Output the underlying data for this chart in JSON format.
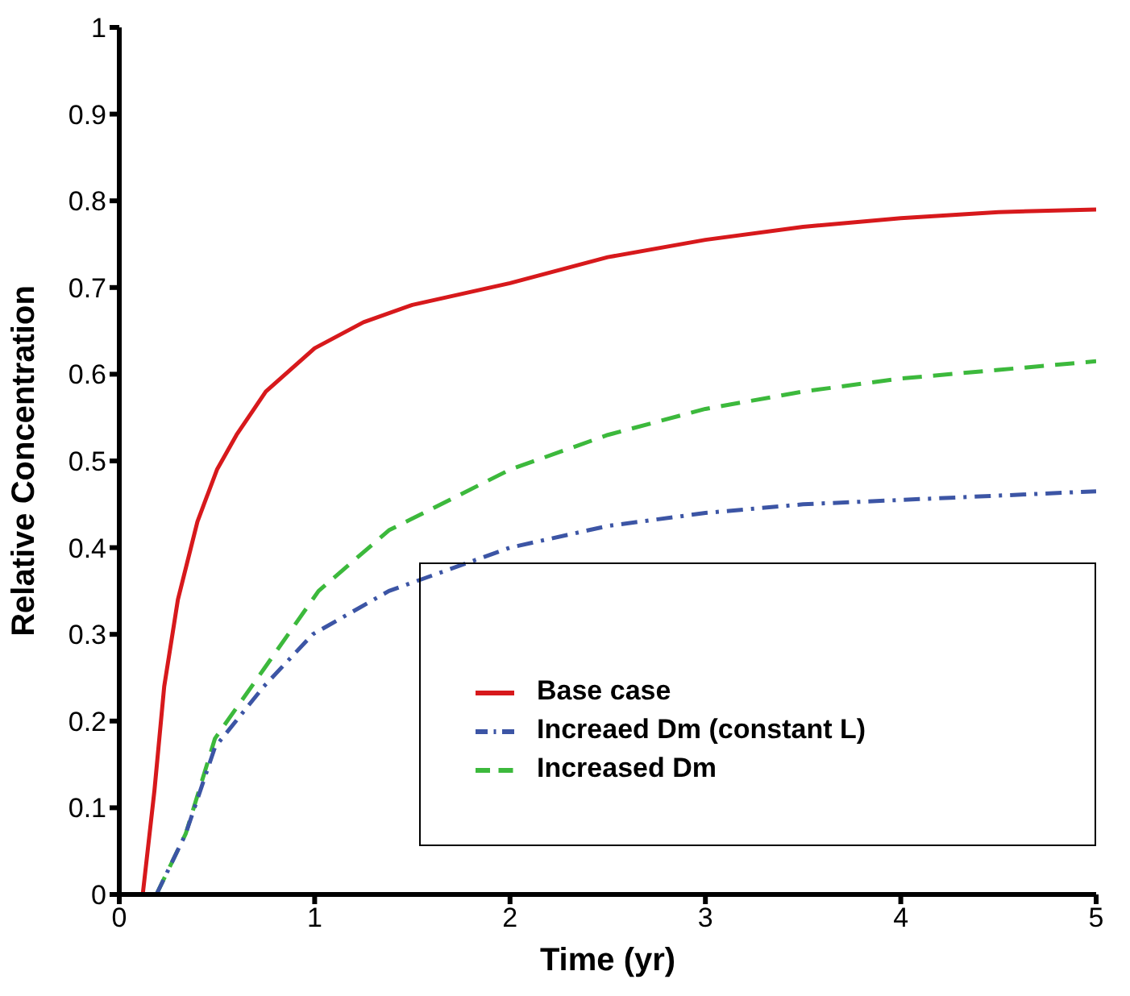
{
  "chart_data": {
    "type": "line",
    "xlabel": "Time (yr)",
    "ylabel": "Relative Concentration",
    "xlim": [
      0,
      5
    ],
    "ylim": [
      0,
      1
    ],
    "xticks": [
      0,
      1,
      2,
      3,
      4,
      5
    ],
    "yticks": [
      0,
      0.1,
      0.2,
      0.3,
      0.4,
      0.5,
      0.6,
      0.7,
      0.8,
      0.9,
      1
    ],
    "grid": false,
    "legend": "bottom right",
    "series": [
      {
        "name": "Base case",
        "color": "#d7191c",
        "line_style": "solid",
        "x": [
          0.12,
          0.18,
          0.23,
          0.3,
          0.4,
          0.5,
          0.6,
          0.75,
          1,
          1.25,
          1.5,
          2,
          2.5,
          3,
          3.5,
          4,
          4.5,
          5
        ],
        "values": [
          0,
          0.12,
          0.24,
          0.34,
          0.43,
          0.49,
          0.53,
          0.58,
          0.63,
          0.66,
          0.68,
          0.705,
          0.735,
          0.755,
          0.77,
          0.78,
          0.787,
          0.79
        ]
      },
      {
        "name": "Increased Dm",
        "color": "#3cb93c",
        "line_style": "dashed",
        "x": [
          0.19,
          0.34,
          0.49,
          0.74,
          1.02,
          1.38,
          2,
          2.5,
          3,
          3.5,
          4,
          4.5,
          5
        ],
        "values": [
          0,
          0.07,
          0.18,
          0.26,
          0.35,
          0.42,
          0.49,
          0.53,
          0.56,
          0.58,
          0.595,
          0.605,
          0.615
        ]
      },
      {
        "name": "Increaed Dm (constant L)",
        "color": "#3c55a5",
        "line_style": "dashdot",
        "x": [
          0.19,
          0.34,
          0.49,
          0.74,
          0.99,
          1.38,
          2,
          2.5,
          3,
          3.5,
          4,
          4.5,
          5
        ],
        "values": [
          0,
          0.07,
          0.17,
          0.24,
          0.3,
          0.35,
          0.4,
          0.425,
          0.44,
          0.45,
          0.455,
          0.46,
          0.465
        ]
      }
    ]
  }
}
